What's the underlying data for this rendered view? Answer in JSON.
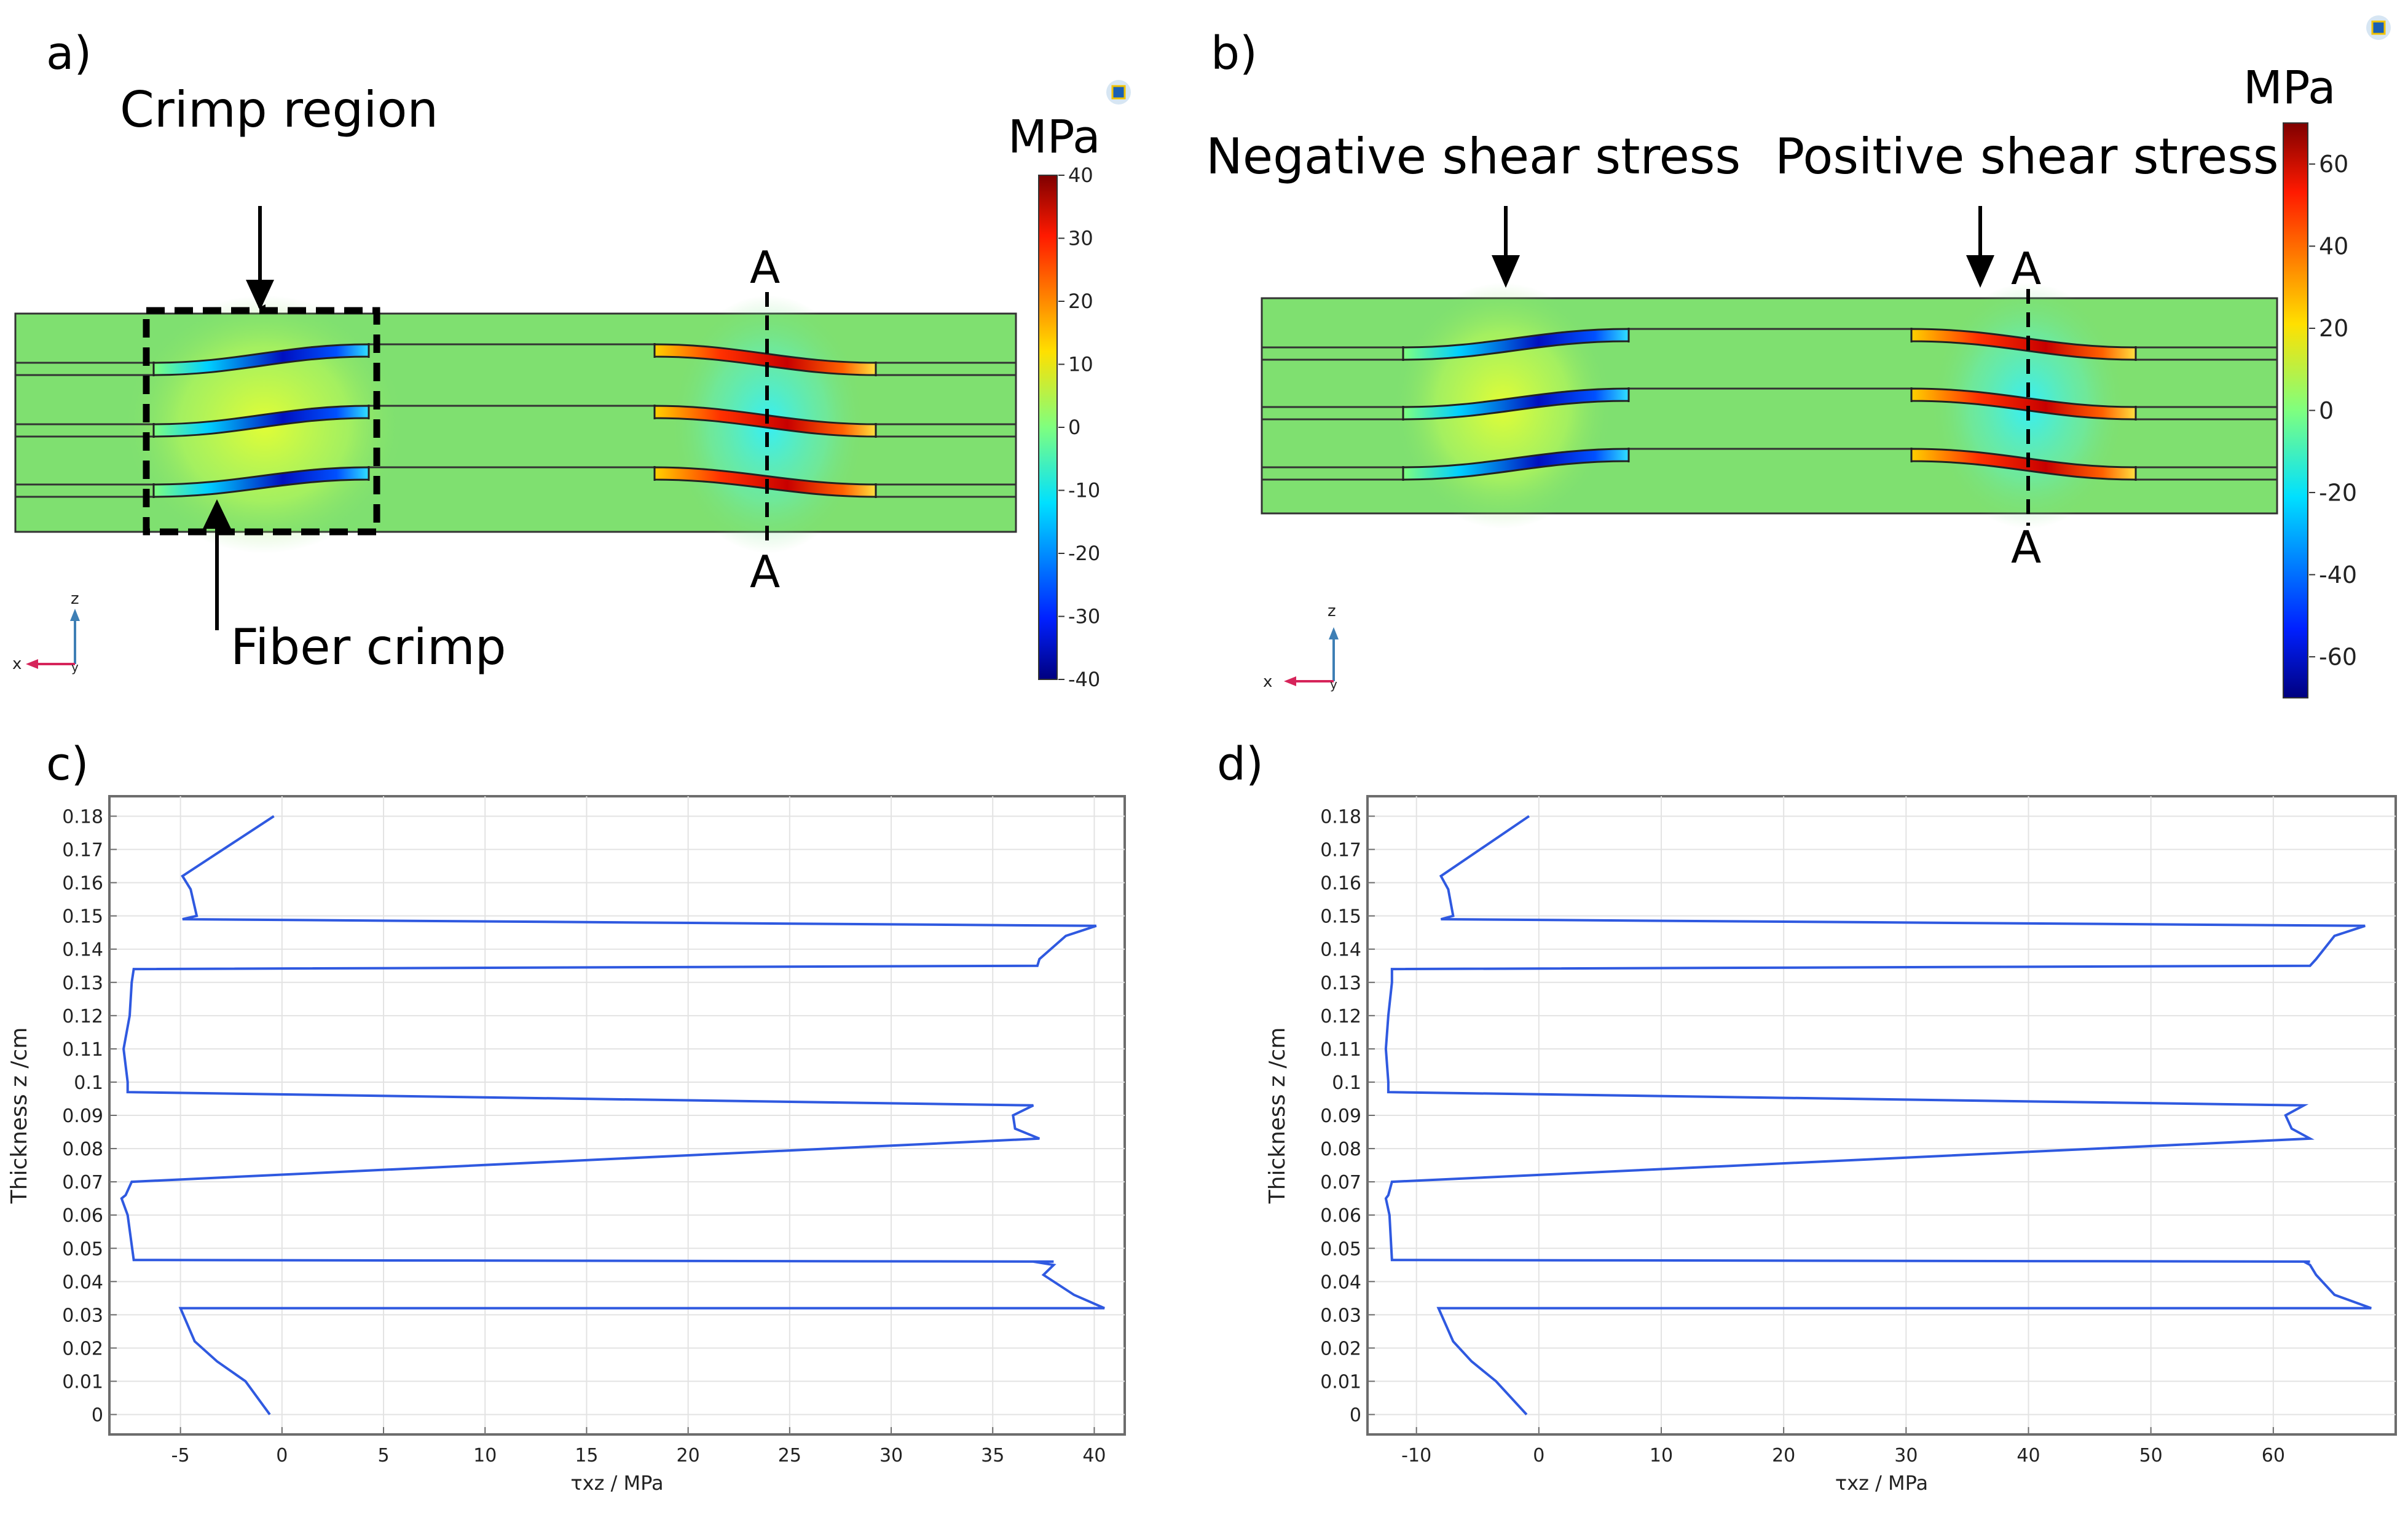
{
  "colors": {
    "background_field": "#7fe070",
    "curve": "#2f59e0",
    "grid": "#e3e3e3",
    "frame": "#6c6c6c",
    "x_axis_arrow": "#d6245a",
    "z_axis_arrow": "#3e7fb5"
  },
  "panel_a": {
    "letter": "a)",
    "annotation_top": "Crimp region",
    "annotation_bottom": "Fiber crimp",
    "section_marker_top": "A",
    "section_marker_bottom": "A",
    "colorbar_unit": "MPa",
    "colorbar_ticks": [
      "40",
      "30",
      "20",
      "10",
      "0",
      "-10",
      "-20",
      "-30",
      "-40"
    ],
    "colorbar_range": [
      -40,
      40
    ],
    "axis_x": "x",
    "axis_y": "y",
    "axis_z": "z"
  },
  "panel_b": {
    "letter": "b)",
    "annotation_left": "Negative shear stress",
    "annotation_right": "Positive shear stress",
    "section_marker_top": "A",
    "section_marker_bottom": "A",
    "colorbar_unit": "MPa",
    "colorbar_ticks": [
      "60",
      "40",
      "20",
      "0",
      "-20",
      "-40",
      "-60"
    ],
    "colorbar_range": [
      -70,
      70
    ],
    "axis_x": "x",
    "axis_y": "y",
    "axis_z": "z"
  },
  "chart_data": [
    {
      "panel": "c)",
      "type": "line",
      "xlabel": "τxz / MPa",
      "ylabel": "Thickness z /cm",
      "xlim": [
        -8.5,
        41.5
      ],
      "ylim": [
        -0.006,
        0.186
      ],
      "xticks": [
        "-5",
        "0",
        "5",
        "10",
        "15",
        "20",
        "25",
        "30",
        "35",
        "40"
      ],
      "yticks": [
        "0",
        "0.01",
        "0.02",
        "0.03",
        "0.04",
        "0.05",
        "0.06",
        "0.07",
        "0.08",
        "0.09",
        "0.1",
        "0.11",
        "0.12",
        "0.13",
        "0.14",
        "0.15",
        "0.16",
        "0.17",
        "0.18"
      ],
      "grid": true,
      "series": [
        {
          "x": [
            -0.6,
            -1.8,
            -3.2,
            -4.3,
            -5.0,
            40.5,
            39.0,
            37.5,
            38.0,
            37.0,
            38.0,
            -7.3,
            -7.6,
            -7.9,
            -7.7,
            -7.4,
            37.3,
            36.1,
            36.0,
            37.0,
            -7.6,
            -7.6,
            -7.8,
            -7.5,
            -7.4,
            -7.3,
            37.2,
            37.3,
            38.6,
            40.1,
            -4.9,
            -4.2,
            -4.5,
            -4.9,
            -0.4
          ],
          "y": [
            0.0,
            0.01,
            0.016,
            0.022,
            0.032,
            0.032,
            0.036,
            0.042,
            0.045,
            0.046,
            0.046,
            0.0465,
            0.06,
            0.065,
            0.066,
            0.07,
            0.083,
            0.086,
            0.09,
            0.093,
            0.097,
            0.1,
            0.11,
            0.12,
            0.13,
            0.134,
            0.135,
            0.137,
            0.144,
            0.147,
            0.149,
            0.15,
            0.158,
            0.162,
            0.18
          ]
        }
      ]
    },
    {
      "panel": "d)",
      "type": "line",
      "xlabel": "τxz / MPa",
      "ylabel": "Thickness z /cm",
      "xlim": [
        -14,
        70
      ],
      "ylim": [
        -0.006,
        0.186
      ],
      "xticks": [
        "-10",
        "0",
        "10",
        "20",
        "30",
        "40",
        "50",
        "60"
      ],
      "yticks": [
        "0",
        "0.01",
        "0.02",
        "0.03",
        "0.04",
        "0.05",
        "0.06",
        "0.07",
        "0.08",
        "0.09",
        "0.1",
        "0.11",
        "0.12",
        "0.13",
        "0.14",
        "0.15",
        "0.16",
        "0.17",
        "0.18"
      ],
      "grid": true,
      "series": [
        {
          "x": [
            -1.0,
            -3.5,
            -5.5,
            -7.0,
            -8.2,
            68.0,
            65.0,
            63.5,
            63.0,
            62.5,
            63.0,
            -12.0,
            -12.2,
            -12.5,
            -12.3,
            -12.0,
            63.0,
            61.5,
            61.0,
            62.5,
            -12.3,
            -12.3,
            -12.5,
            -12.3,
            -12.0,
            -12.0,
            63.0,
            63.5,
            65.0,
            67.5,
            -8.0,
            -7.0,
            -7.4,
            -8.0,
            -0.8
          ],
          "y": [
            0.0,
            0.01,
            0.016,
            0.022,
            0.032,
            0.032,
            0.036,
            0.042,
            0.045,
            0.046,
            0.046,
            0.0465,
            0.06,
            0.065,
            0.066,
            0.07,
            0.083,
            0.086,
            0.09,
            0.093,
            0.097,
            0.1,
            0.11,
            0.12,
            0.13,
            0.134,
            0.135,
            0.137,
            0.144,
            0.147,
            0.149,
            0.15,
            0.158,
            0.162,
            0.18
          ]
        }
      ]
    }
  ]
}
